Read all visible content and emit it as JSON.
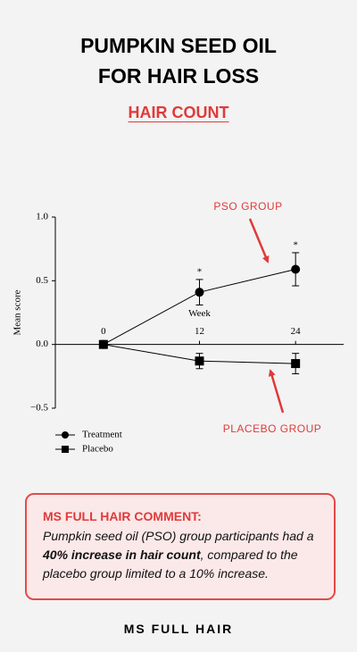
{
  "header": {
    "title_lines": [
      "PUMPKIN SEED OIL",
      "FOR HAIR LOSS"
    ],
    "subtitle": "HAIR COUNT"
  },
  "chart_data": {
    "type": "line",
    "x": [
      0,
      12,
      24
    ],
    "xlabel": "Week",
    "ylabel": "Mean score",
    "xlim": [
      -6,
      30
    ],
    "xticks": [
      0,
      12,
      24
    ],
    "ylim": [
      -0.5,
      1.0
    ],
    "yticks": [
      {
        "value": -0.5,
        "label": "−0.5"
      },
      {
        "value": 0,
        "label": "0.0"
      },
      {
        "value": 0.5,
        "label": "0.5"
      },
      {
        "value": 1.0,
        "label": "1.0"
      }
    ],
    "series": [
      {
        "name": "Treatment",
        "color": "#000000",
        "marker": "circle",
        "values": [
          0,
          0.41,
          0.59
        ],
        "errors": [
          0,
          0.1,
          0.13
        ]
      },
      {
        "name": "Placebo",
        "color": "#000000",
        "marker": "square",
        "values": [
          0,
          -0.13,
          -0.15
        ],
        "errors": [
          0,
          0.06,
          0.08
        ]
      }
    ],
    "annotations": [
      {
        "text": "*",
        "x": 12
      },
      {
        "text": "*",
        "x": 24
      }
    ],
    "callouts": [
      "PSO GROUP",
      "PLACEBO GROUP"
    ]
  },
  "comment": {
    "heading": "MS FULL HAIR COMMENT:",
    "text_before": "Pumpkin seed oil (PSO) group participants had a ",
    "text_bold": "40% increase in hair count",
    "text_after": ", compared to the placebo group limited to a 10% increase."
  },
  "footer": "MS FULL HAIR"
}
